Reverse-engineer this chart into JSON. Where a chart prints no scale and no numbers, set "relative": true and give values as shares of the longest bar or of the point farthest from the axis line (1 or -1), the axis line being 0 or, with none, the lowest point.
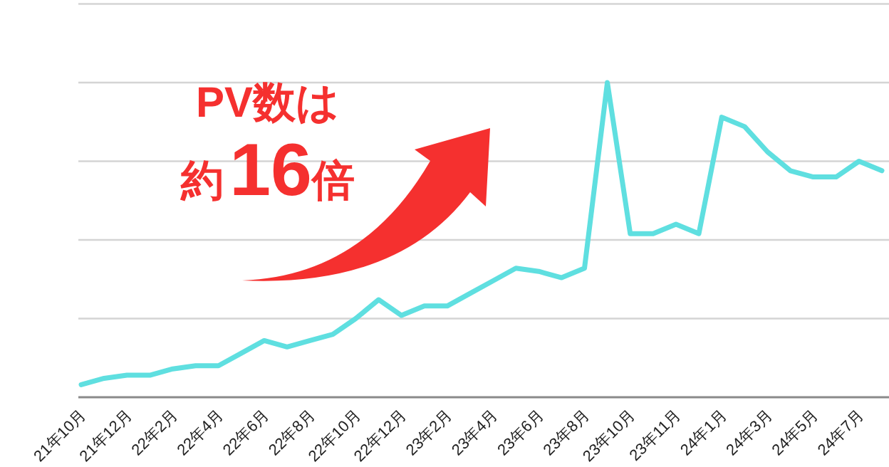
{
  "chart_data": {
    "type": "line",
    "relative": true,
    "grid": "y",
    "color": "#5fdfe0",
    "categories": [
      "21年10月",
      null,
      "21年12月",
      null,
      "22年2月",
      null,
      "22年4月",
      null,
      "22年6月",
      null,
      "22年8月",
      null,
      "22年10月",
      null,
      "22年12月",
      null,
      "23年2月",
      null,
      "23年4月",
      null,
      "23年6月",
      null,
      "23年8月",
      null,
      "23年10月",
      null,
      "23年11月",
      null,
      "24年1月",
      null,
      "24年3月",
      null,
      "24年5月",
      null,
      "24年7月",
      null
    ],
    "values": [
      0.04,
      0.06,
      0.07,
      0.07,
      0.09,
      0.1,
      0.1,
      0.14,
      0.18,
      0.16,
      0.18,
      0.2,
      0.25,
      0.31,
      0.26,
      0.29,
      0.29,
      0.33,
      0.37,
      0.41,
      0.4,
      0.38,
      0.41,
      1,
      0.52,
      0.52,
      0.55,
      0.52,
      0.89,
      0.86,
      0.78,
      0.72,
      0.7,
      0.7,
      0.75,
      0.72
    ],
    "annotations": [
      "PV数は",
      "約16倍"
    ]
  }
}
